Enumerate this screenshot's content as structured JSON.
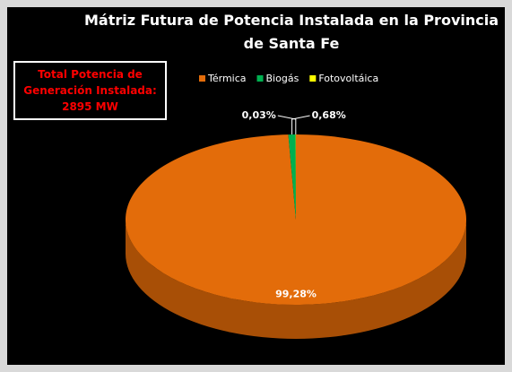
{
  "chart_data": {
    "type": "pie",
    "title": "Mátriz Futura de Potencia Instalada en la Provincia de Santa Fe",
    "annotation": "Total Potencia de Generación Instalada: 2895 MW",
    "categories": [
      "Térmica",
      "Biogás",
      "Fotovoltáica"
    ],
    "values": [
      99.28,
      0.68,
      0.03
    ],
    "value_labels": [
      "99,28%",
      "0,68%",
      "0,03%"
    ],
    "colors": [
      "#e36c0a",
      "#00b050",
      "#ffff00"
    ],
    "legend": "top"
  }
}
